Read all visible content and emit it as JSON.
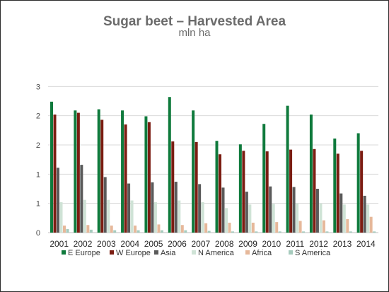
{
  "chart_data": {
    "type": "bar",
    "title": "Sugar beet – Harvested Area",
    "subtitle": "mln ha",
    "xlabel": "",
    "ylabel": "",
    "ylim": [
      0,
      3
    ],
    "y_tick_labels": [
      "0",
      "1",
      "1",
      "2",
      "2",
      "3"
    ],
    "y_tick_values": [
      0,
      0.5,
      1,
      1.5,
      2,
      2.5
    ],
    "grid": true,
    "legend_position": "bottom",
    "categories": [
      "2001",
      "2002",
      "2003",
      "2004",
      "2005",
      "2006",
      "2007",
      "2008",
      "2009",
      "2010",
      "2011",
      "2012",
      "2013",
      "2014"
    ],
    "series": [
      {
        "name": "E Europe",
        "color": "#0f7a3c",
        "values": [
          2.24,
          2.09,
          2.11,
          2.09,
          1.99,
          2.32,
          2.09,
          1.57,
          1.51,
          1.86,
          2.17,
          2.02,
          1.61,
          1.7
        ]
      },
      {
        "name": "W Europe",
        "color": "#7b1d12",
        "values": [
          2.02,
          2.05,
          1.93,
          1.85,
          1.89,
          1.56,
          1.55,
          1.34,
          1.4,
          1.39,
          1.42,
          1.43,
          1.35,
          1.4
        ]
      },
      {
        "name": "Asia",
        "color": "#5a5a5a",
        "values": [
          1.11,
          1.16,
          0.95,
          0.84,
          0.86,
          0.87,
          0.83,
          0.77,
          0.7,
          0.79,
          0.78,
          0.75,
          0.67,
          0.63
        ]
      },
      {
        "name": "N America",
        "color": "#cfe3d6",
        "values": [
          0.52,
          0.56,
          0.56,
          0.55,
          0.52,
          0.55,
          0.52,
          0.42,
          0.48,
          0.49,
          0.5,
          0.5,
          0.48,
          0.48
        ]
      },
      {
        "name": "Africa",
        "color": "#e6b89a",
        "values": [
          0.12,
          0.13,
          0.12,
          0.12,
          0.14,
          0.13,
          0.16,
          0.17,
          0.17,
          0.18,
          0.2,
          0.21,
          0.23,
          0.27
        ]
      },
      {
        "name": "S America",
        "color": "#a6cbbd",
        "values": [
          0.06,
          0.05,
          0.04,
          0.04,
          0.04,
          0.04,
          0.03,
          0.02,
          0.02,
          0.02,
          0.02,
          0.02,
          0.02,
          0.02
        ]
      }
    ]
  }
}
